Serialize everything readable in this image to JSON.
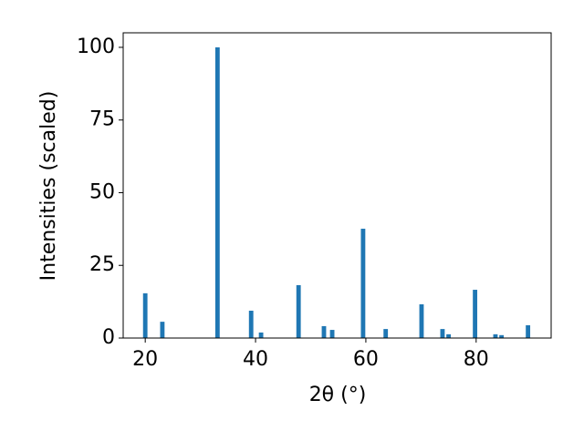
{
  "chart_data": {
    "type": "bar",
    "xlabel": "2θ (°)",
    "ylabel": "Intensities (scaled)",
    "x": [
      20.0,
      23.1,
      33.1,
      39.2,
      41.0,
      47.8,
      52.4,
      53.9,
      59.5,
      63.6,
      70.1,
      73.9,
      75.0,
      79.8,
      83.5,
      84.6,
      89.4
    ],
    "values": [
      15.4,
      5.6,
      100,
      9.4,
      1.9,
      18.2,
      4.1,
      2.8,
      37.6,
      3.1,
      11.6,
      3.1,
      1.3,
      16.6,
      1.3,
      1.0,
      4.4
    ],
    "color": "#1f77b4",
    "bar_width": 0.8,
    "xlim": [
      16.0,
      93.6
    ],
    "xticks": [
      20,
      40,
      60,
      80
    ],
    "ylim": [
      0,
      105
    ],
    "yticks": [
      0,
      25,
      50,
      75,
      100
    ]
  }
}
